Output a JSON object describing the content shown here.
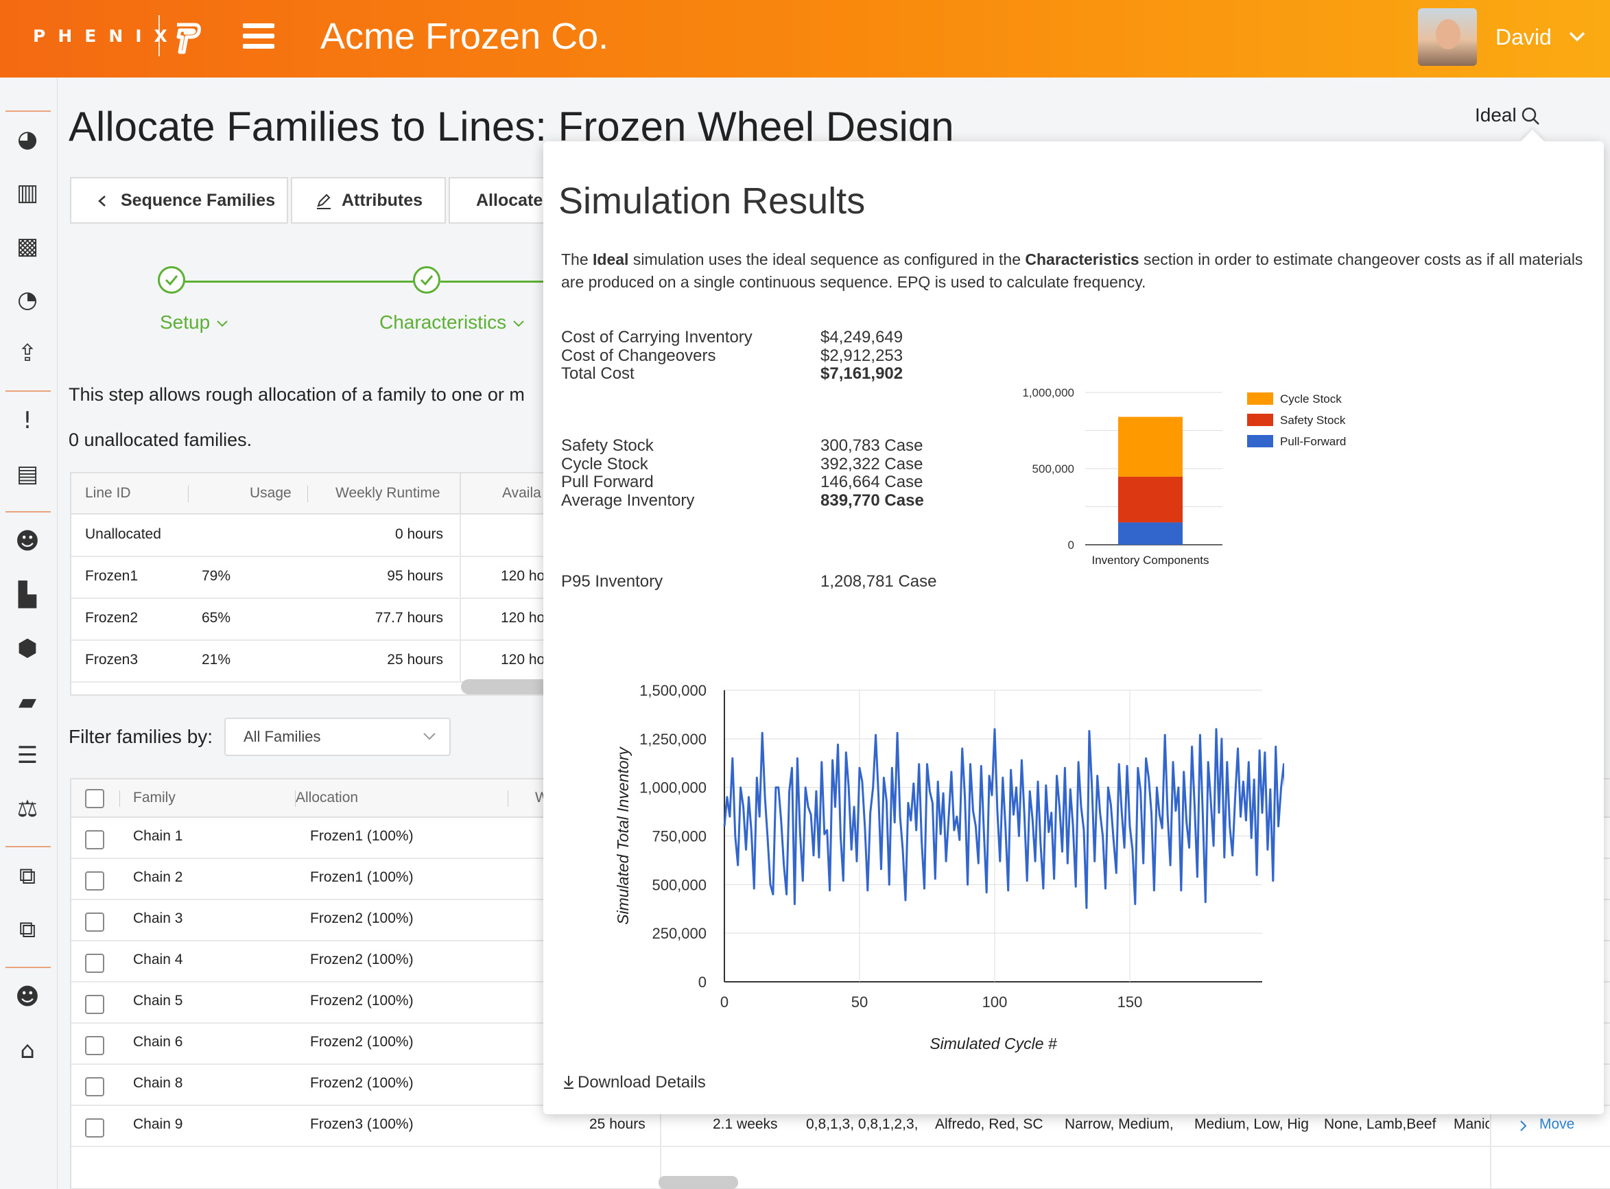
{
  "header": {
    "brand": "PHENIX",
    "app_title": "Acme Frozen Co.",
    "user_name": "David"
  },
  "sidebar": {
    "icons": [
      "dashboard-icon",
      "bar-chart-icon",
      "map-icon",
      "pie-chart-icon",
      "upload-icon",
      "alert-icon",
      "book-icon",
      "users-icon",
      "factory-icon",
      "box-icon",
      "ruler-icon",
      "list-check-icon",
      "scale-icon",
      "external-link-icon",
      "external-link-icon",
      "users-icon",
      "home-icon"
    ]
  },
  "page": {
    "title": "Allocate Families to Lines: Frozen Wheel Design",
    "search_label": "Ideal",
    "tabs": {
      "sequence": "Sequence Families",
      "attributes": "Attributes",
      "allocate": "Allocate"
    },
    "steps": {
      "setup": "Setup",
      "characteristics": "Characteristics"
    },
    "intro": "This step allows rough allocation of a family to one or m",
    "unallocated": "0 unallocated families."
  },
  "lines_table": {
    "headers": {
      "line_id": "Line ID",
      "usage": "Usage",
      "weekly_runtime": "Weekly Runtime",
      "avail": "Availa"
    },
    "rows": [
      {
        "line": "Unallocated",
        "usage": "",
        "runtime": "0 hours",
        "avail": ""
      },
      {
        "line": "Frozen1",
        "usage": "79%",
        "runtime": "95 hours",
        "avail": "120 ho"
      },
      {
        "line": "Frozen2",
        "usage": "65%",
        "runtime": "77.7 hours",
        "avail": "120 ho"
      },
      {
        "line": "Frozen3",
        "usage": "21%",
        "runtime": "25 hours",
        "avail": "120 ho"
      }
    ]
  },
  "filter": {
    "label": "Filter families by:",
    "selected": "All Families"
  },
  "families_table": {
    "headers": {
      "family": "Family",
      "allocation": "Allocation",
      "w": "W"
    },
    "rows": [
      {
        "family": "Chain 1",
        "allocation": "Frozen1 (100%)"
      },
      {
        "family": "Chain 2",
        "allocation": "Frozen1 (100%)"
      },
      {
        "family": "Chain 3",
        "allocation": "Frozen2 (100%)"
      },
      {
        "family": "Chain 4",
        "allocation": "Frozen2 (100%)"
      },
      {
        "family": "Chain 5",
        "allocation": "Frozen2 (100%)"
      },
      {
        "family": "Chain 6",
        "allocation": "Frozen2 (100%)"
      },
      {
        "family": "Chain 8",
        "allocation": "Frozen2 (100%)"
      },
      {
        "family": "Chain 9",
        "allocation": "Frozen3 (100%)",
        "runtime": "25 hours",
        "freq": "2.1 weeks",
        "seq": "0,8,1,3, 0,8,1,2,3,",
        "attr1": "Alfredo, Red, SC",
        "attr2": "Narrow, Medium,",
        "attr3": "Medium, Low, Hig",
        "attr4": "None, Lamb,Beef",
        "attr5": "Manic",
        "action": "Move"
      }
    ]
  },
  "simulation": {
    "title": "Simulation Results",
    "desc_1": "The ",
    "desc_ideal": "Ideal",
    "desc_2": " simulation uses the ideal sequence as configured in the ",
    "desc_char": "Characteristics",
    "desc_3": " section in order to estimate changeover costs as if all materials are produced on a single continuous sequence. EPQ is used to calculate frequency.",
    "costs": [
      {
        "label": "Cost of Carrying Inventory",
        "value": "$4,249,649",
        "bold": false
      },
      {
        "label": "Cost of Changeovers",
        "value": "$2,912,253",
        "bold": false
      },
      {
        "label": "Total Cost",
        "value": "$7,161,902",
        "bold": true
      }
    ],
    "inventory": [
      {
        "label": "Safety Stock",
        "value": "300,783 Case",
        "bold": false
      },
      {
        "label": "Cycle Stock",
        "value": "392,322 Case",
        "bold": false
      },
      {
        "label": "Pull Forward",
        "value": "146,664 Case",
        "bold": false
      },
      {
        "label": "Average Inventory",
        "value": "839,770 Case",
        "bold": true
      }
    ],
    "p95": {
      "label": "P95 Inventory",
      "value": "1,208,781 Case"
    },
    "download": "Download Details"
  },
  "chart_data": [
    {
      "type": "bar",
      "stacked": true,
      "categories": [
        "Inventory Components"
      ],
      "series": [
        {
          "name": "Pull-Forward",
          "values": [
            146664
          ],
          "color": "#3366cc"
        },
        {
          "name": "Safety Stock",
          "values": [
            300783
          ],
          "color": "#dc3912"
        },
        {
          "name": "Cycle Stock",
          "values": [
            392322
          ],
          "color": "#ff9900"
        }
      ],
      "yticks": [
        "0",
        "500,000",
        "1,000,000"
      ],
      "ylim": [
        0,
        1000000
      ],
      "legend": "right",
      "grid": true
    },
    {
      "type": "line",
      "xlabel": "Simulated Cycle #",
      "ylabel": "Simulated Total Inventory",
      "xlim": [
        0,
        199
      ],
      "ylim": [
        0,
        1500000
      ],
      "xticks": [
        "0",
        "50",
        "100",
        "150"
      ],
      "yticks": [
        "0",
        "250,000",
        "500,000",
        "750,000",
        "1,000,000",
        "1,250,000",
        "1,500,000"
      ],
      "grid": true,
      "color": "#3366cc",
      "values": [
        800000,
        950000,
        850000,
        1150000,
        750000,
        600000,
        1000000,
        900000,
        680000,
        950000,
        770000,
        480000,
        1050000,
        850000,
        1280000,
        950000,
        740000,
        500000,
        450000,
        1000000,
        1000000,
        830000,
        600000,
        450000,
        980000,
        1100000,
        400000,
        1150000,
        770000,
        520000,
        1000000,
        900000,
        860000,
        650000,
        980000,
        640000,
        1130000,
        760000,
        780000,
        470000,
        1140000,
        900000,
        1220000,
        750000,
        520000,
        1180000,
        1000000,
        680000,
        900000,
        620000,
        1100000,
        1030000,
        790000,
        470000,
        870000,
        1000000,
        1270000,
        960000,
        580000,
        1050000,
        930000,
        500000,
        1100000,
        820000,
        1280000,
        850000,
        680000,
        420000,
        920000,
        830000,
        1020000,
        780000,
        1120000,
        720000,
        480000,
        1120000,
        980000,
        920000,
        530000,
        1030000,
        760000,
        970000,
        620000,
        850000,
        1080000,
        780000,
        850000,
        730000,
        1200000,
        950000,
        500000,
        1120000,
        880000,
        800000,
        610000,
        1110000,
        780000,
        460000,
        1060000,
        960000,
        1300000,
        880000,
        620000,
        1050000,
        800000,
        470000,
        1090000,
        860000,
        1000000,
        750000,
        1140000,
        860000,
        520000,
        980000,
        840000,
        620000,
        1030000,
        710000,
        480000,
        1010000,
        770000,
        870000,
        530000,
        1060000,
        900000,
        670000,
        1100000,
        610000,
        990000,
        800000,
        490000,
        1130000,
        900000,
        780000,
        380000,
        1290000,
        1000000,
        620000,
        1060000,
        870000,
        750000,
        480000,
        1000000,
        910000,
        730000,
        560000,
        1120000,
        880000,
        690000,
        1110000,
        800000,
        680000,
        400000,
        1100000,
        980000,
        610000,
        1150000,
        1050000,
        870000,
        470000,
        1000000,
        860000,
        790000,
        1270000,
        860000,
        600000,
        1130000,
        880000,
        1000000,
        470000,
        1080000,
        820000,
        690000,
        1210000,
        900000,
        540000,
        1270000,
        870000,
        410000,
        1130000,
        930000,
        700000,
        1300000,
        870000,
        1250000,
        640000,
        1130000,
        800000,
        650000,
        950000,
        1200000,
        850000,
        1030000,
        830000,
        1130000,
        740000,
        1040000,
        550000,
        1190000,
        870000,
        1180000,
        680000,
        990000,
        520000,
        1210000,
        800000,
        1000000,
        1120000,
        870000,
        1020000
      ]
    }
  ]
}
